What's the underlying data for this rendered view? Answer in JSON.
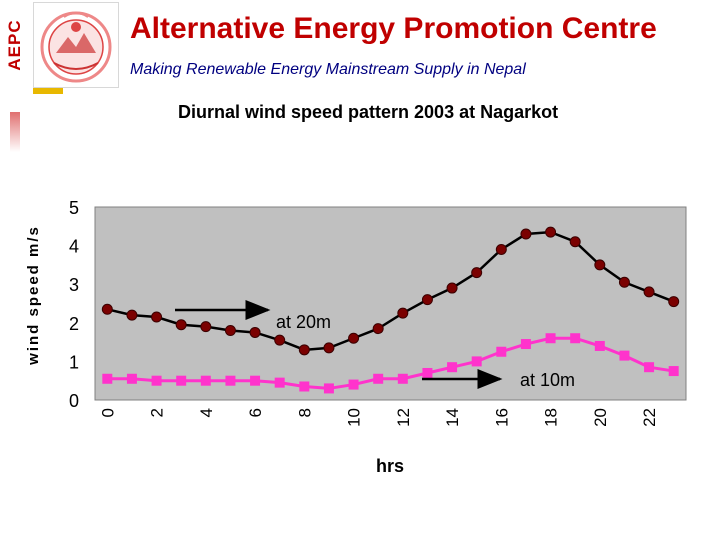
{
  "header": {
    "side_label": "AEPC",
    "title": "Alternative Energy Promotion Centre",
    "subtitle": "Making Renewable Energy Mainstream Supply in Nepal"
  },
  "colors": {
    "title": "#c00000",
    "subtitle": "#000080",
    "plot_bg": "#c0c0c0",
    "series_20m": "#7b0000",
    "series_10m": "#ff33cc"
  },
  "chart_data": {
    "type": "line",
    "title": "Diurnal  wind speed pattern 2003  at Nagarkot",
    "xlabel": "hrs",
    "ylabel": "wind speed m/s",
    "x": [
      0,
      1,
      2,
      3,
      4,
      5,
      6,
      7,
      8,
      9,
      10,
      11,
      12,
      13,
      14,
      15,
      16,
      17,
      18,
      19,
      20,
      21,
      22,
      23
    ],
    "x_ticks": [
      0,
      2,
      4,
      6,
      8,
      10,
      12,
      14,
      16,
      18,
      20,
      22
    ],
    "y_ticks": [
      0,
      1,
      2,
      3,
      4,
      5
    ],
    "xlim": [
      -0.5,
      23.5
    ],
    "ylim": [
      0,
      5
    ],
    "grid": false,
    "series": [
      {
        "name": "at 20m",
        "marker": "circle",
        "values": [
          2.35,
          2.2,
          2.15,
          1.95,
          1.9,
          1.8,
          1.75,
          1.55,
          1.3,
          1.35,
          1.6,
          1.85,
          2.25,
          2.6,
          2.9,
          3.3,
          3.9,
          4.3,
          4.35,
          4.1,
          3.5,
          3.05,
          2.8,
          2.55
        ]
      },
      {
        "name": "at 10m",
        "marker": "square",
        "values": [
          0.55,
          0.55,
          0.5,
          0.5,
          0.5,
          0.5,
          0.5,
          0.45,
          0.35,
          0.3,
          0.4,
          0.55,
          0.55,
          0.7,
          0.85,
          1.0,
          1.25,
          1.45,
          1.6,
          1.6,
          1.4,
          1.15,
          0.85,
          0.75
        ]
      }
    ],
    "annotations": [
      "at 20m",
      "at 10m"
    ]
  }
}
